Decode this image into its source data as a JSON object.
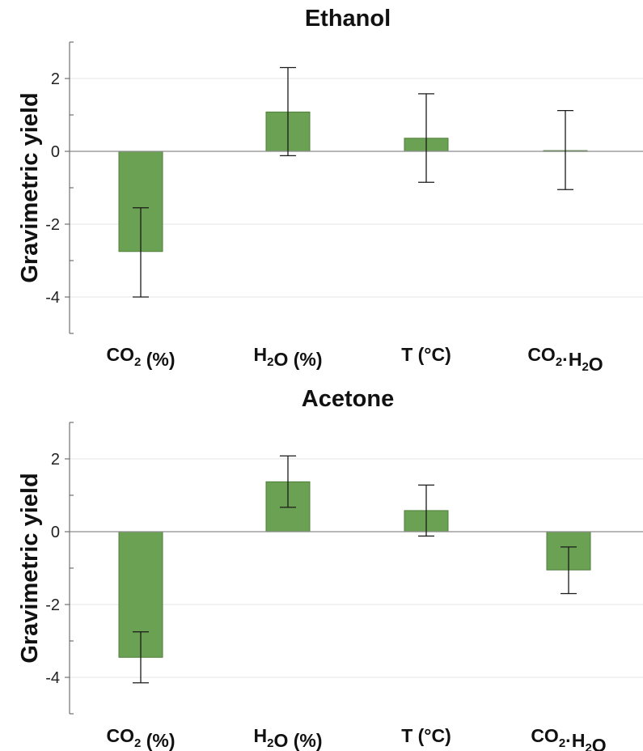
{
  "chart_data": [
    {
      "type": "bar",
      "title": "Ethanol",
      "ylabel": "Gravimetric yield",
      "xlabel": "",
      "categories": [
        "CO2 (%)",
        "H2O (%)",
        "T (°C)",
        "CO2·H2O"
      ],
      "values": [
        -2.75,
        1.08,
        0.36,
        0.02
      ],
      "error_low": [
        -4.0,
        -0.12,
        -0.85,
        -1.05
      ],
      "error_high": [
        -1.55,
        2.3,
        1.58,
        1.12
      ],
      "ylim": [
        -5,
        3
      ],
      "yticks": [
        -4,
        -2,
        0,
        2
      ],
      "ytick_labels": [
        "-4",
        "-2",
        "0",
        "2"
      ],
      "grid": true
    },
    {
      "type": "bar",
      "title": "Acetone",
      "ylabel": "Gravimetric yield",
      "xlabel": "",
      "categories": [
        "CO2 (%)",
        "H2O (%)",
        "T (°C)",
        "CO2·H2O"
      ],
      "values": [
        -3.45,
        1.37,
        0.58,
        -1.05
      ],
      "error_low": [
        -4.15,
        0.67,
        -0.12,
        -1.7
      ],
      "error_high": [
        -2.75,
        2.08,
        1.28,
        -0.42
      ],
      "ylim": [
        -5,
        3
      ],
      "yticks": [
        -4,
        -2,
        0,
        2
      ],
      "ytick_labels": [
        "-4",
        "-2",
        "0",
        "2"
      ],
      "grid": true
    }
  ],
  "colors": {
    "bar_fill": "#6aa152",
    "bar_edge": "#4f7f3b"
  }
}
